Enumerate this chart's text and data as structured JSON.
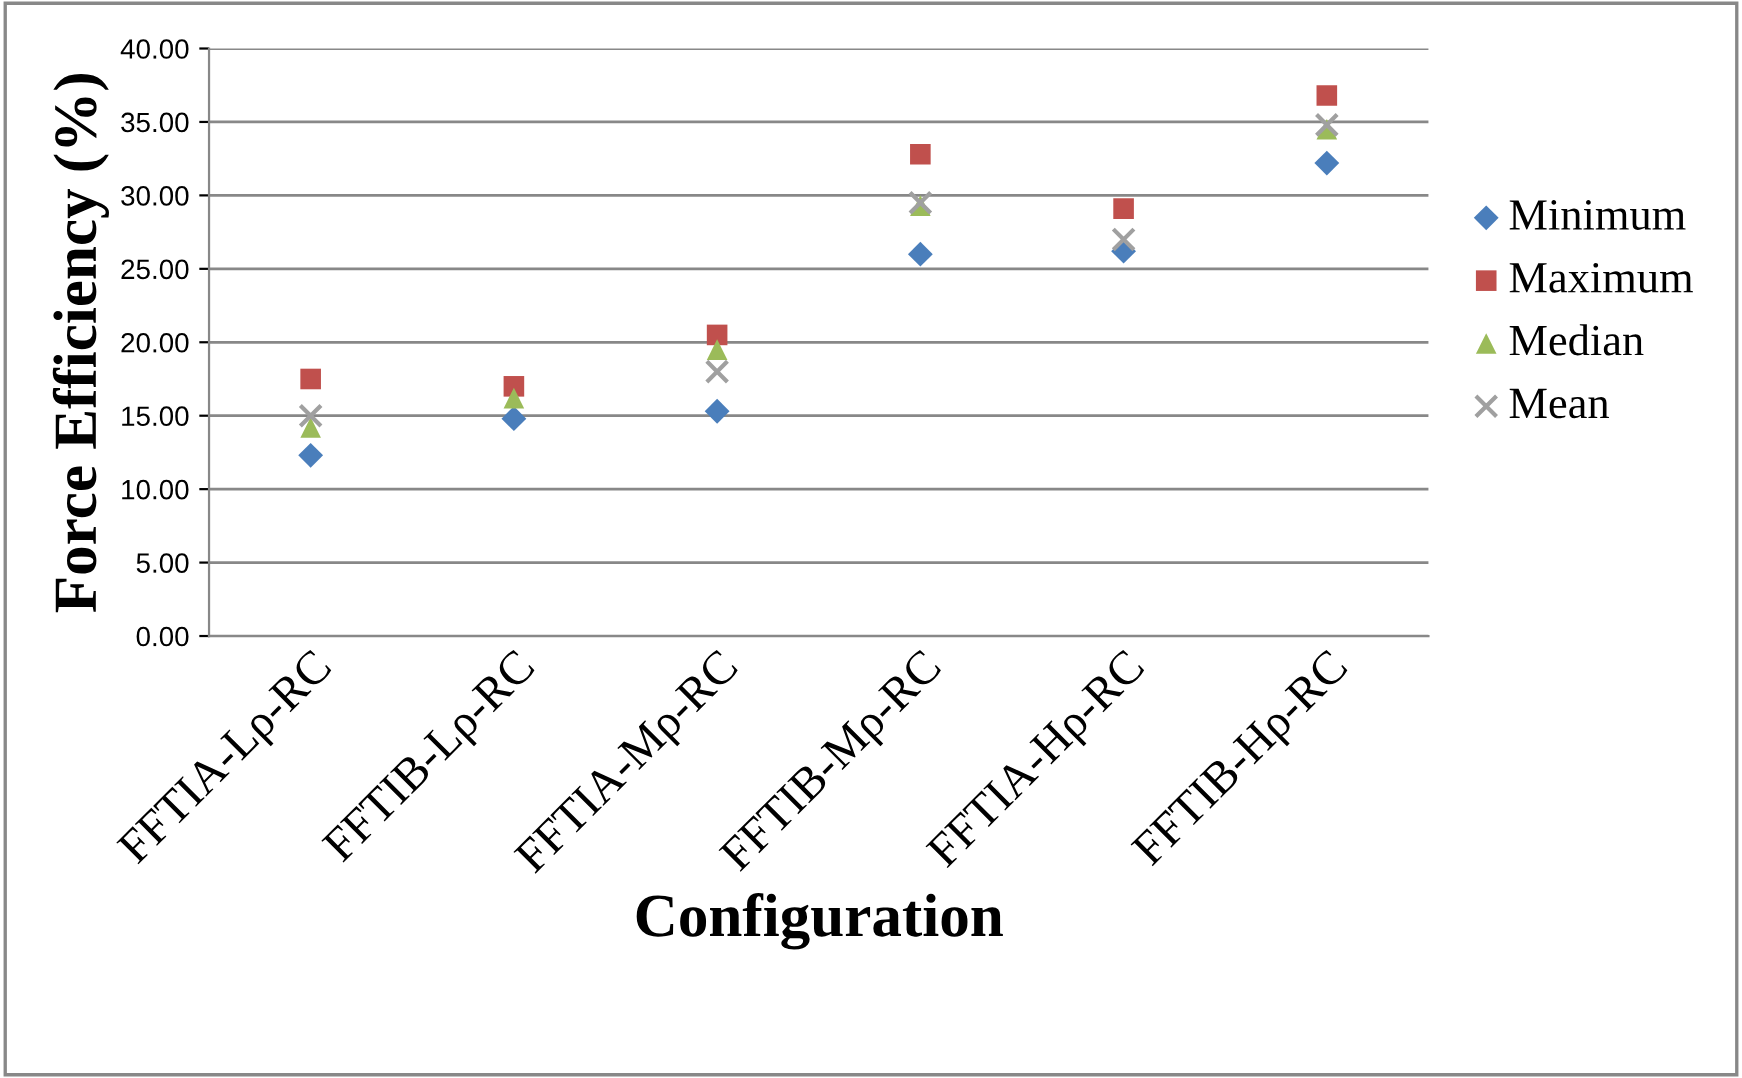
{
  "chart_data": {
    "type": "scatter",
    "xlabel": "Configuration",
    "ylabel": "Force Efficiency (%)",
    "categories": [
      "FFTIA-Lρ-RC",
      "FFTIB-Lρ-RC",
      "FFTIA-Mρ-RC",
      "FFTIB-Mρ-RC",
      "FFTIA-Hρ-RC",
      "FFTIB-Hρ-RC"
    ],
    "series": [
      {
        "name": "Minimum",
        "color": "#4a7ebb",
        "marker": "diamond",
        "values": [
          12.3,
          14.8,
          15.3,
          26.0,
          26.2,
          32.2
        ]
      },
      {
        "name": "Maximum",
        "color": "#c0504d",
        "marker": "square",
        "values": [
          17.5,
          17.0,
          20.5,
          32.8,
          29.1,
          36.8
        ]
      },
      {
        "name": "Median",
        "color": "#9bbb59",
        "marker": "triangle",
        "values": [
          14.2,
          16.2,
          19.5,
          29.3,
          null,
          34.5
        ]
      },
      {
        "name": "Mean",
        "color": "#a0a0a0",
        "marker": "cross",
        "values": [
          15.0,
          null,
          18.0,
          29.5,
          27.0,
          34.8
        ]
      }
    ],
    "ylim": [
      0,
      40
    ],
    "yticks": [
      {
        "value": 0,
        "label": "0.00"
      },
      {
        "value": 5,
        "label": "5.00"
      },
      {
        "value": 10,
        "label": "10.00"
      },
      {
        "value": 15,
        "label": "15.00"
      },
      {
        "value": 20,
        "label": "20.00"
      },
      {
        "value": 25,
        "label": "25.00"
      },
      {
        "value": 30,
        "label": "30.00"
      },
      {
        "value": 35,
        "label": "35.00"
      },
      {
        "value": 40,
        "label": "40.00"
      }
    ],
    "grid": "y",
    "legend": "right"
  }
}
